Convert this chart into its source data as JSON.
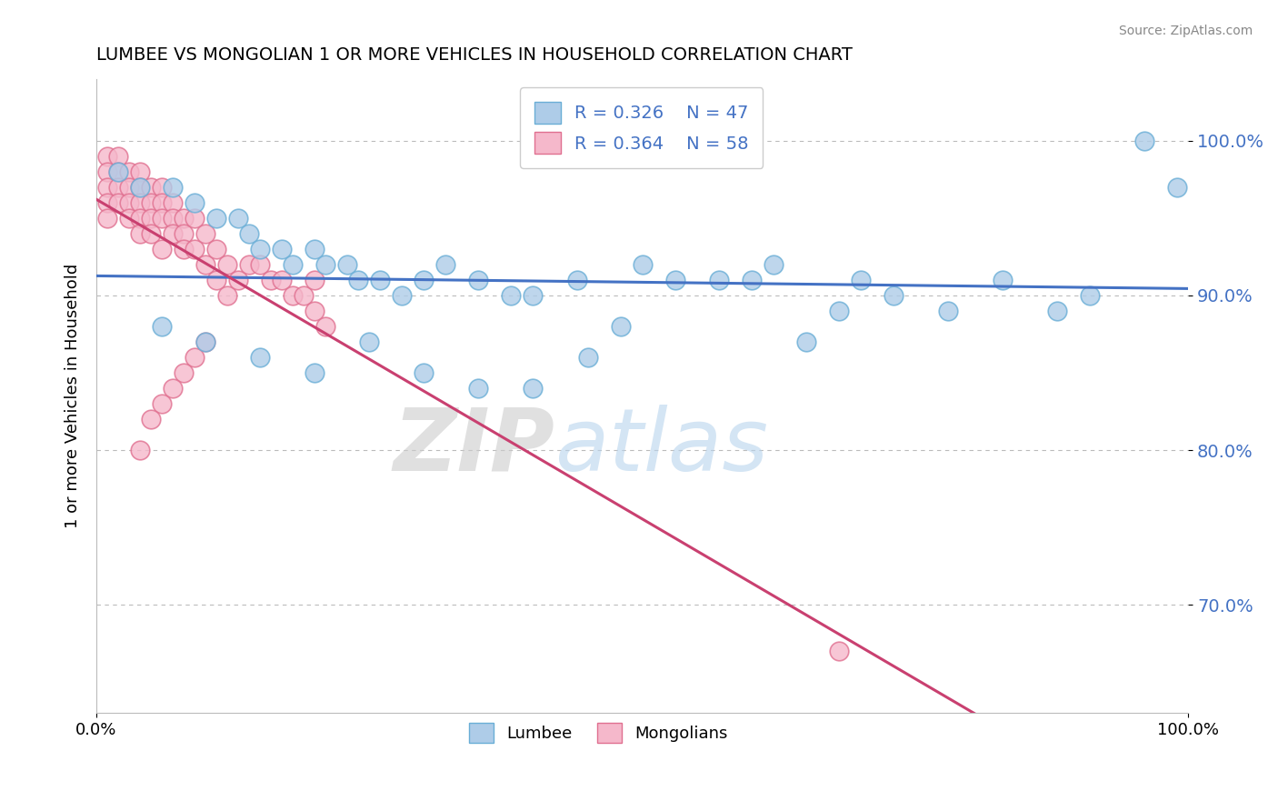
{
  "title": "LUMBEE VS MONGOLIAN 1 OR MORE VEHICLES IN HOUSEHOLD CORRELATION CHART",
  "source_text": "Source: ZipAtlas.com",
  "ylabel": "1 or more Vehicles in Household",
  "xlim": [
    0.0,
    1.0
  ],
  "ylim": [
    0.63,
    1.04
  ],
  "yticks": [
    0.7,
    0.8,
    0.9,
    1.0
  ],
  "ytick_labels": [
    "70.0%",
    "80.0%",
    "90.0%",
    "100.0%"
  ],
  "xtick_labels": [
    "0.0%",
    "100.0%"
  ],
  "xticks": [
    0.0,
    1.0
  ],
  "lumbee_color": "#aecce8",
  "mongolian_color": "#f5b8cb",
  "lumbee_edge": "#6aaed6",
  "mongolian_edge": "#e07090",
  "trend_blue": "#4472c4",
  "trend_pink": "#c94070",
  "watermark_zip": "ZIP",
  "watermark_atlas": "atlas",
  "legend_r_blue": "R = 0.326",
  "legend_n_blue": "N = 47",
  "legend_r_pink": "R = 0.364",
  "legend_n_pink": "N = 58",
  "lumbee_x": [
    0.02,
    0.04,
    0.07,
    0.09,
    0.11,
    0.13,
    0.14,
    0.15,
    0.17,
    0.18,
    0.2,
    0.21,
    0.23,
    0.24,
    0.26,
    0.28,
    0.3,
    0.32,
    0.35,
    0.38,
    0.4,
    0.44,
    0.48,
    0.5,
    0.53,
    0.57,
    0.6,
    0.62,
    0.65,
    0.68,
    0.7,
    0.73,
    0.78,
    0.83,
    0.88,
    0.91,
    0.96,
    0.99,
    0.06,
    0.1,
    0.15,
    0.2,
    0.25,
    0.3,
    0.35,
    0.4,
    0.45
  ],
  "lumbee_y": [
    0.98,
    0.97,
    0.97,
    0.96,
    0.95,
    0.95,
    0.94,
    0.93,
    0.93,
    0.92,
    0.93,
    0.92,
    0.92,
    0.91,
    0.91,
    0.9,
    0.91,
    0.92,
    0.91,
    0.9,
    0.9,
    0.91,
    0.88,
    0.92,
    0.91,
    0.91,
    0.91,
    0.92,
    0.87,
    0.89,
    0.91,
    0.9,
    0.89,
    0.91,
    0.89,
    0.9,
    1.0,
    0.97,
    0.88,
    0.87,
    0.86,
    0.85,
    0.87,
    0.85,
    0.84,
    0.84,
    0.86
  ],
  "mongolian_x": [
    0.01,
    0.01,
    0.01,
    0.01,
    0.01,
    0.02,
    0.02,
    0.02,
    0.02,
    0.03,
    0.03,
    0.03,
    0.03,
    0.04,
    0.04,
    0.04,
    0.04,
    0.04,
    0.05,
    0.05,
    0.05,
    0.05,
    0.06,
    0.06,
    0.06,
    0.06,
    0.07,
    0.07,
    0.07,
    0.08,
    0.08,
    0.08,
    0.09,
    0.09,
    0.1,
    0.1,
    0.11,
    0.11,
    0.12,
    0.12,
    0.13,
    0.14,
    0.15,
    0.16,
    0.17,
    0.18,
    0.19,
    0.2,
    0.2,
    0.21,
    0.1,
    0.09,
    0.08,
    0.07,
    0.06,
    0.05,
    0.04,
    0.68
  ],
  "mongolian_y": [
    0.99,
    0.98,
    0.97,
    0.96,
    0.95,
    0.99,
    0.98,
    0.97,
    0.96,
    0.98,
    0.97,
    0.96,
    0.95,
    0.98,
    0.97,
    0.96,
    0.95,
    0.94,
    0.97,
    0.96,
    0.95,
    0.94,
    0.97,
    0.96,
    0.95,
    0.93,
    0.96,
    0.95,
    0.94,
    0.95,
    0.94,
    0.93,
    0.95,
    0.93,
    0.94,
    0.92,
    0.93,
    0.91,
    0.92,
    0.9,
    0.91,
    0.92,
    0.92,
    0.91,
    0.91,
    0.9,
    0.9,
    0.91,
    0.89,
    0.88,
    0.87,
    0.86,
    0.85,
    0.84,
    0.83,
    0.82,
    0.8,
    0.67
  ]
}
